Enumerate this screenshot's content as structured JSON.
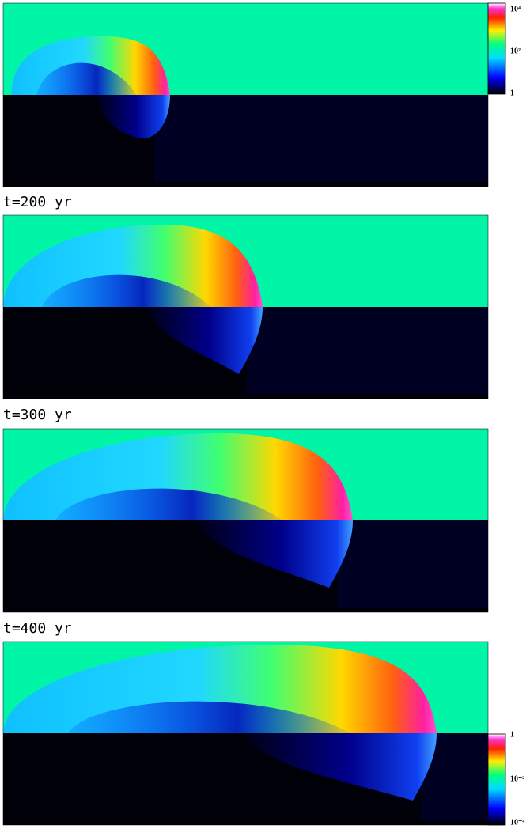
{
  "time_labels": [
    "t=200 yr",
    "t=300 yr",
    "t=400 yr"
  ],
  "colorbars": [
    {
      "ticks": [
        "10⁴",
        "10²",
        "1"
      ]
    },
    {
      "ticks": [
        "1",
        "10⁻²",
        "10⁻⁴"
      ]
    }
  ]
}
